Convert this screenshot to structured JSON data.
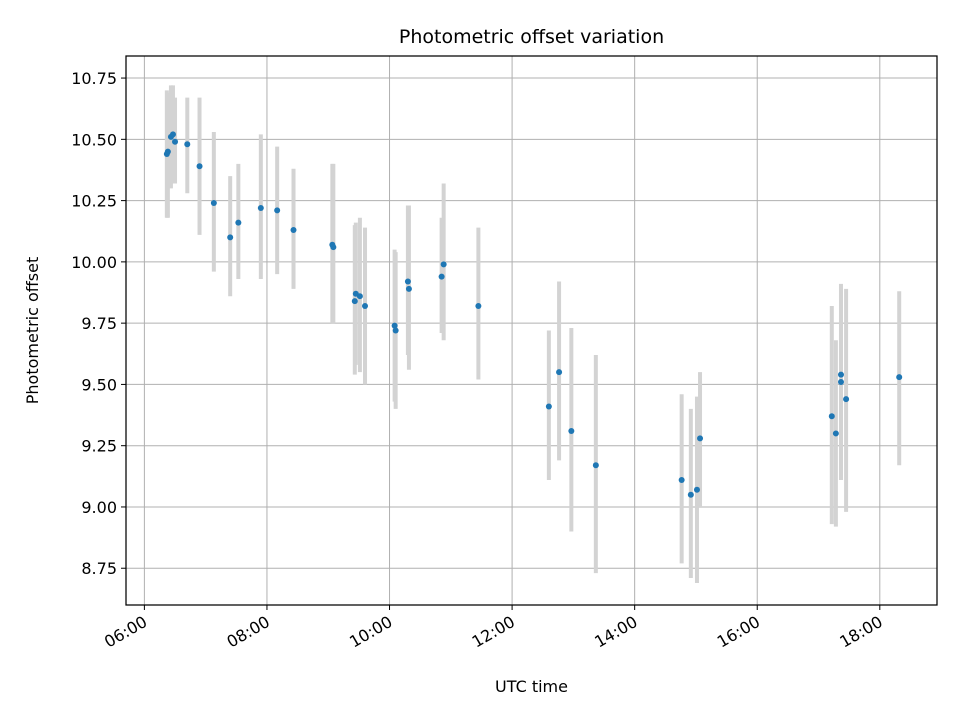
{
  "chart_data": {
    "type": "scatter",
    "title": "Photometric offset variation",
    "xlabel": "UTC time",
    "ylabel": "Photometric offset",
    "x_tick_labels": [
      "06:00",
      "08:00",
      "10:00",
      "12:00",
      "14:00",
      "16:00",
      "18:00"
    ],
    "x_ticks": [
      "06:00",
      "08:00",
      "10:00",
      "12:00",
      "14:00",
      "16:00",
      "18:00"
    ],
    "y_ticks": [
      8.75,
      9.0,
      9.25,
      9.5,
      9.75,
      10.0,
      10.25,
      10.5,
      10.75
    ],
    "y_tick_labels": [
      "8.75",
      "9.00",
      "9.25",
      "9.50",
      "9.75",
      "10.00",
      "10.25",
      "10.50",
      "10.75"
    ],
    "xlim": [
      "05:42",
      "18:56"
    ],
    "ylim": [
      8.6,
      10.84
    ],
    "grid": true,
    "colors": {
      "points": "#1f77b4",
      "errorbars": "#d3d3d3",
      "grid": "#b0b0b0"
    },
    "points": [
      {
        "x": "06:22",
        "y": 10.44,
        "lo": 10.18,
        "hi": 10.7
      },
      {
        "x": "06:23",
        "y": 10.45,
        "lo": 10.18,
        "hi": 10.69
      },
      {
        "x": "06:26",
        "y": 10.51,
        "lo": 10.3,
        "hi": 10.72
      },
      {
        "x": "06:28",
        "y": 10.52,
        "lo": 10.32,
        "hi": 10.72
      },
      {
        "x": "06:30",
        "y": 10.49,
        "lo": 10.32,
        "hi": 10.67
      },
      {
        "x": "06:42",
        "y": 10.48,
        "lo": 10.28,
        "hi": 10.67
      },
      {
        "x": "06:54",
        "y": 10.39,
        "lo": 10.11,
        "hi": 10.67
      },
      {
        "x": "07:08",
        "y": 10.24,
        "lo": 9.96,
        "hi": 10.53
      },
      {
        "x": "07:24",
        "y": 10.1,
        "lo": 9.86,
        "hi": 10.35
      },
      {
        "x": "07:32",
        "y": 10.16,
        "lo": 9.93,
        "hi": 10.4
      },
      {
        "x": "07:54",
        "y": 10.22,
        "lo": 9.93,
        "hi": 10.52
      },
      {
        "x": "08:10",
        "y": 10.21,
        "lo": 9.95,
        "hi": 10.47
      },
      {
        "x": "08:26",
        "y": 10.13,
        "lo": 9.89,
        "hi": 10.38
      },
      {
        "x": "09:04",
        "y": 10.07,
        "lo": 9.75,
        "hi": 10.4
      },
      {
        "x": "09:05",
        "y": 10.06,
        "lo": 9.75,
        "hi": 10.4
      },
      {
        "x": "09:26",
        "y": 9.84,
        "lo": 9.54,
        "hi": 10.15
      },
      {
        "x": "09:27",
        "y": 9.87,
        "lo": 9.58,
        "hi": 10.16
      },
      {
        "x": "09:31",
        "y": 9.86,
        "lo": 9.55,
        "hi": 10.18
      },
      {
        "x": "09:36",
        "y": 9.82,
        "lo": 9.5,
        "hi": 10.14
      },
      {
        "x": "10:05",
        "y": 9.74,
        "lo": 9.43,
        "hi": 10.05
      },
      {
        "x": "10:06",
        "y": 9.72,
        "lo": 9.4,
        "hi": 10.04
      },
      {
        "x": "10:18",
        "y": 9.92,
        "lo": 9.62,
        "hi": 10.23
      },
      {
        "x": "10:19",
        "y": 9.89,
        "lo": 9.56,
        "hi": 10.23
      },
      {
        "x": "10:51",
        "y": 9.94,
        "lo": 9.71,
        "hi": 10.18
      },
      {
        "x": "10:53",
        "y": 9.99,
        "lo": 9.68,
        "hi": 10.32
      },
      {
        "x": "11:27",
        "y": 9.82,
        "lo": 9.52,
        "hi": 10.14
      },
      {
        "x": "12:36",
        "y": 9.41,
        "lo": 9.11,
        "hi": 9.72
      },
      {
        "x": "12:46",
        "y": 9.55,
        "lo": 9.19,
        "hi": 9.92
      },
      {
        "x": "12:58",
        "y": 9.31,
        "lo": 8.9,
        "hi": 9.73
      },
      {
        "x": "13:22",
        "y": 9.17,
        "lo": 8.73,
        "hi": 9.62
      },
      {
        "x": "14:46",
        "y": 9.11,
        "lo": 8.77,
        "hi": 9.46
      },
      {
        "x": "14:55",
        "y": 9.05,
        "lo": 8.71,
        "hi": 9.4
      },
      {
        "x": "15:01",
        "y": 9.07,
        "lo": 8.69,
        "hi": 9.45
      },
      {
        "x": "15:04",
        "y": 9.28,
        "lo": 9.0,
        "hi": 9.55
      },
      {
        "x": "17:13",
        "y": 9.37,
        "lo": 8.93,
        "hi": 9.82
      },
      {
        "x": "17:17",
        "y": 9.3,
        "lo": 8.92,
        "hi": 9.68
      },
      {
        "x": "17:22",
        "y": 9.54,
        "lo": 9.11,
        "hi": 9.91
      },
      {
        "x": "17:22",
        "y": 9.51,
        "lo": 9.11,
        "hi": 9.89
      },
      {
        "x": "17:27",
        "y": 9.44,
        "lo": 8.98,
        "hi": 9.89
      },
      {
        "x": "18:19",
        "y": 9.53,
        "lo": 9.17,
        "hi": 9.88
      }
    ]
  }
}
